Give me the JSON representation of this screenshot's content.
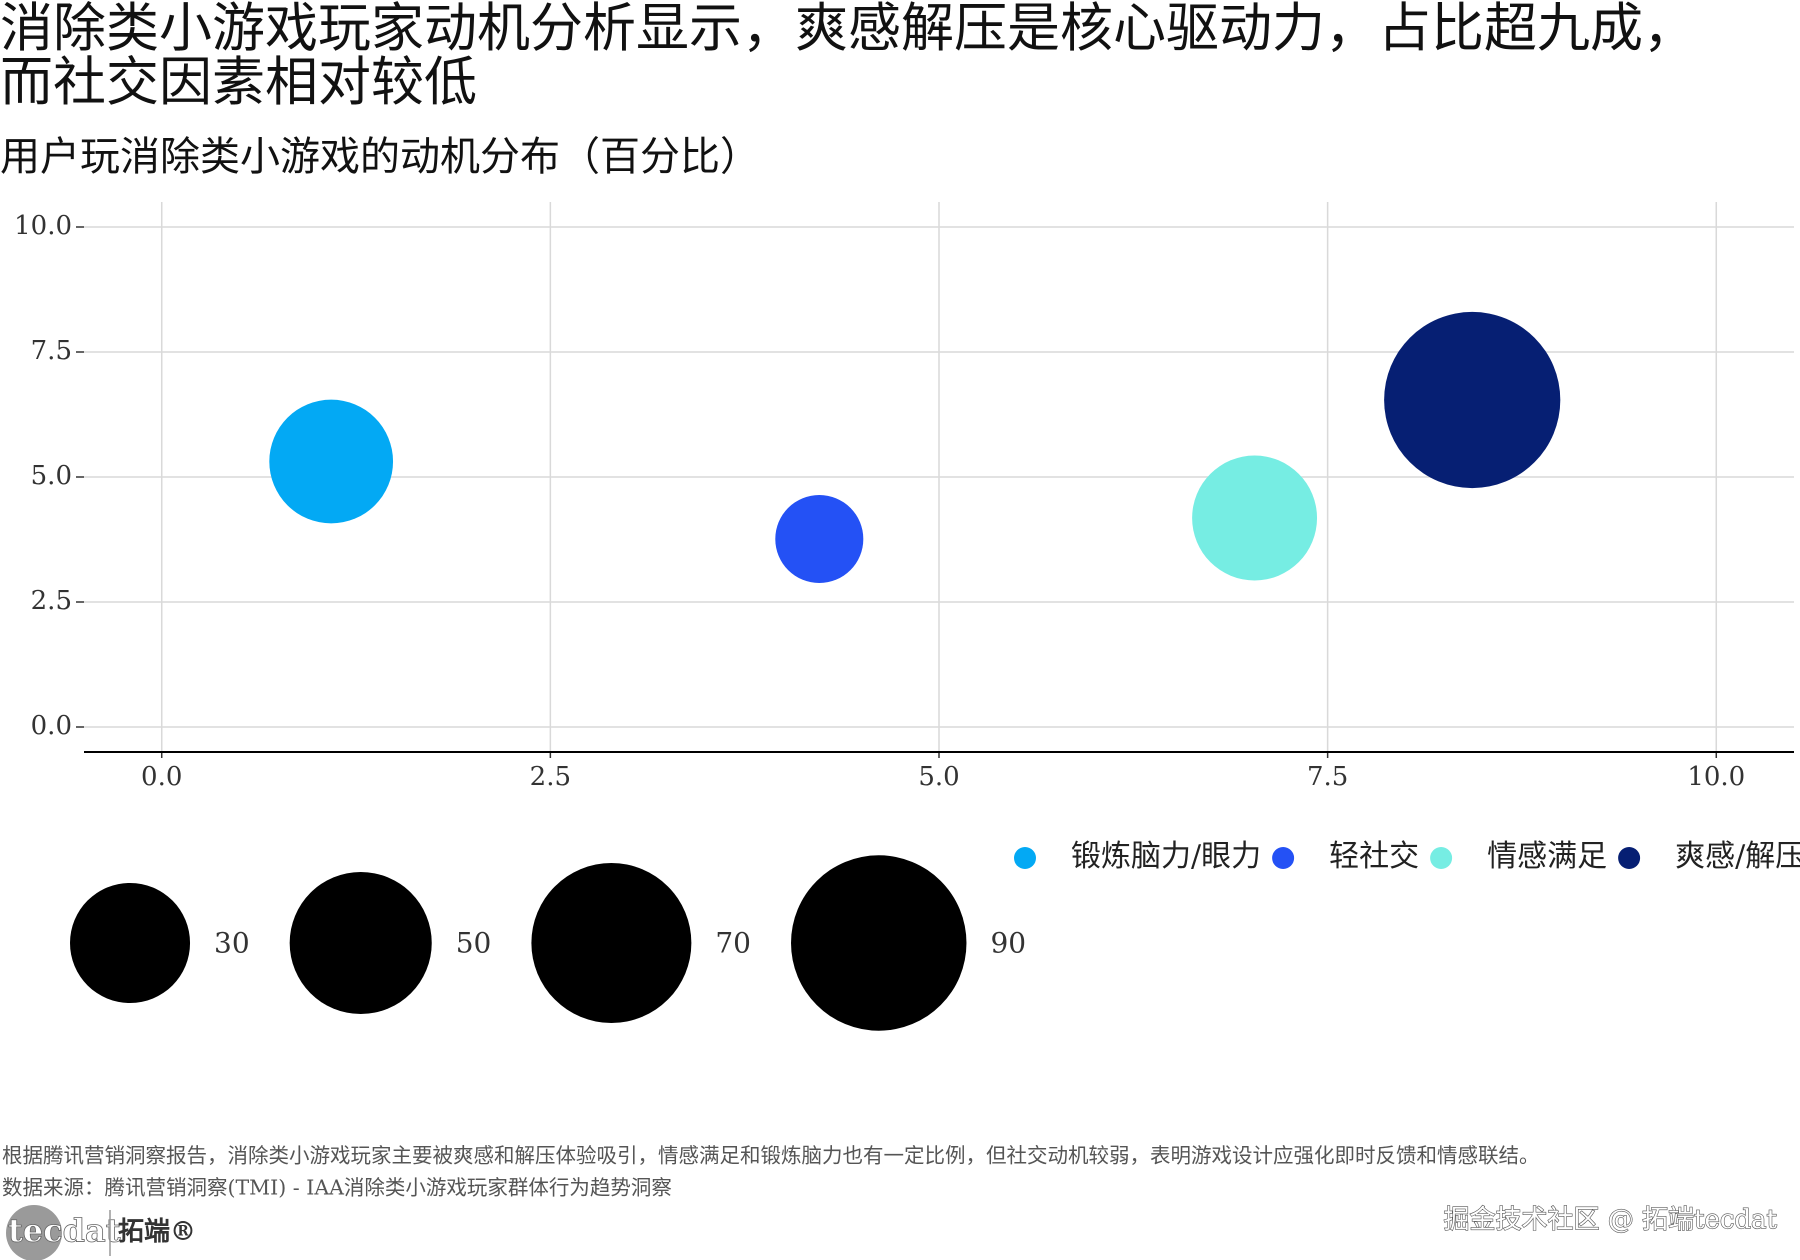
{
  "chart_data": {
    "type": "bubble",
    "title": "消除类小游戏玩家动机分析显示，爽感解压是核心驱动力，占比超九成，而社交因素相对较低",
    "subtitle": "用户玩消除类小游戏的动机分布（百分比）",
    "series": [
      {
        "name": "锻炼脑力/眼力",
        "color": "#03a9f4",
        "x": [
          1.09
        ],
        "values": [
          5.31
        ],
        "sizes": [
          33
        ]
      },
      {
        "name": "轻社交",
        "color": "#2451f5",
        "x": [
          4.23
        ],
        "values": [
          3.76
        ],
        "sizes": [
          10
        ]
      },
      {
        "name": "情感满足",
        "color": "#76ede3",
        "x": [
          7.03
        ],
        "values": [
          4.18
        ],
        "sizes": [
          34
        ]
      },
      {
        "name": "爽感/解压",
        "color": "#061f73",
        "x": [
          8.43
        ],
        "values": [
          6.54
        ],
        "sizes": [
          91
        ]
      }
    ],
    "xlim": [
      -0.5,
      10.5
    ],
    "ylim": [
      -0.5,
      10.5
    ],
    "xticks": [
      {
        "value": 0,
        "label": "0.0"
      },
      2.5,
      {
        "value": 5,
        "label": "5.0"
      },
      7.5,
      {
        "value": 10,
        "label": "10.0"
      }
    ],
    "yticks": [
      {
        "value": 0,
        "label": "0.0"
      },
      2.5,
      {
        "value": 5,
        "label": "5.0"
      },
      7.5,
      {
        "value": 10,
        "label": "10.0"
      }
    ],
    "grid": true,
    "legend": "bottom-right",
    "size_legend": {
      "values": [
        30,
        50,
        70,
        90
      ],
      "color": "#000000"
    },
    "caption": "根据腾讯营销洞察报告，消除类小游戏玩家主要被爽感和解压体验吸引，情感满足和锻炼脑力也有一定比例，但社交动机较弱，表明游戏设计应强化即时反馈和情感联结。",
    "source": "数据来源：腾讯营销洞察(TMI) - IAA消除类小游戏玩家群体行为趋势洞察"
  },
  "logo": {
    "text": "tecdat",
    "brand": "拓端®"
  },
  "watermark": "掘金技术社区 @ 拓端tecdat"
}
